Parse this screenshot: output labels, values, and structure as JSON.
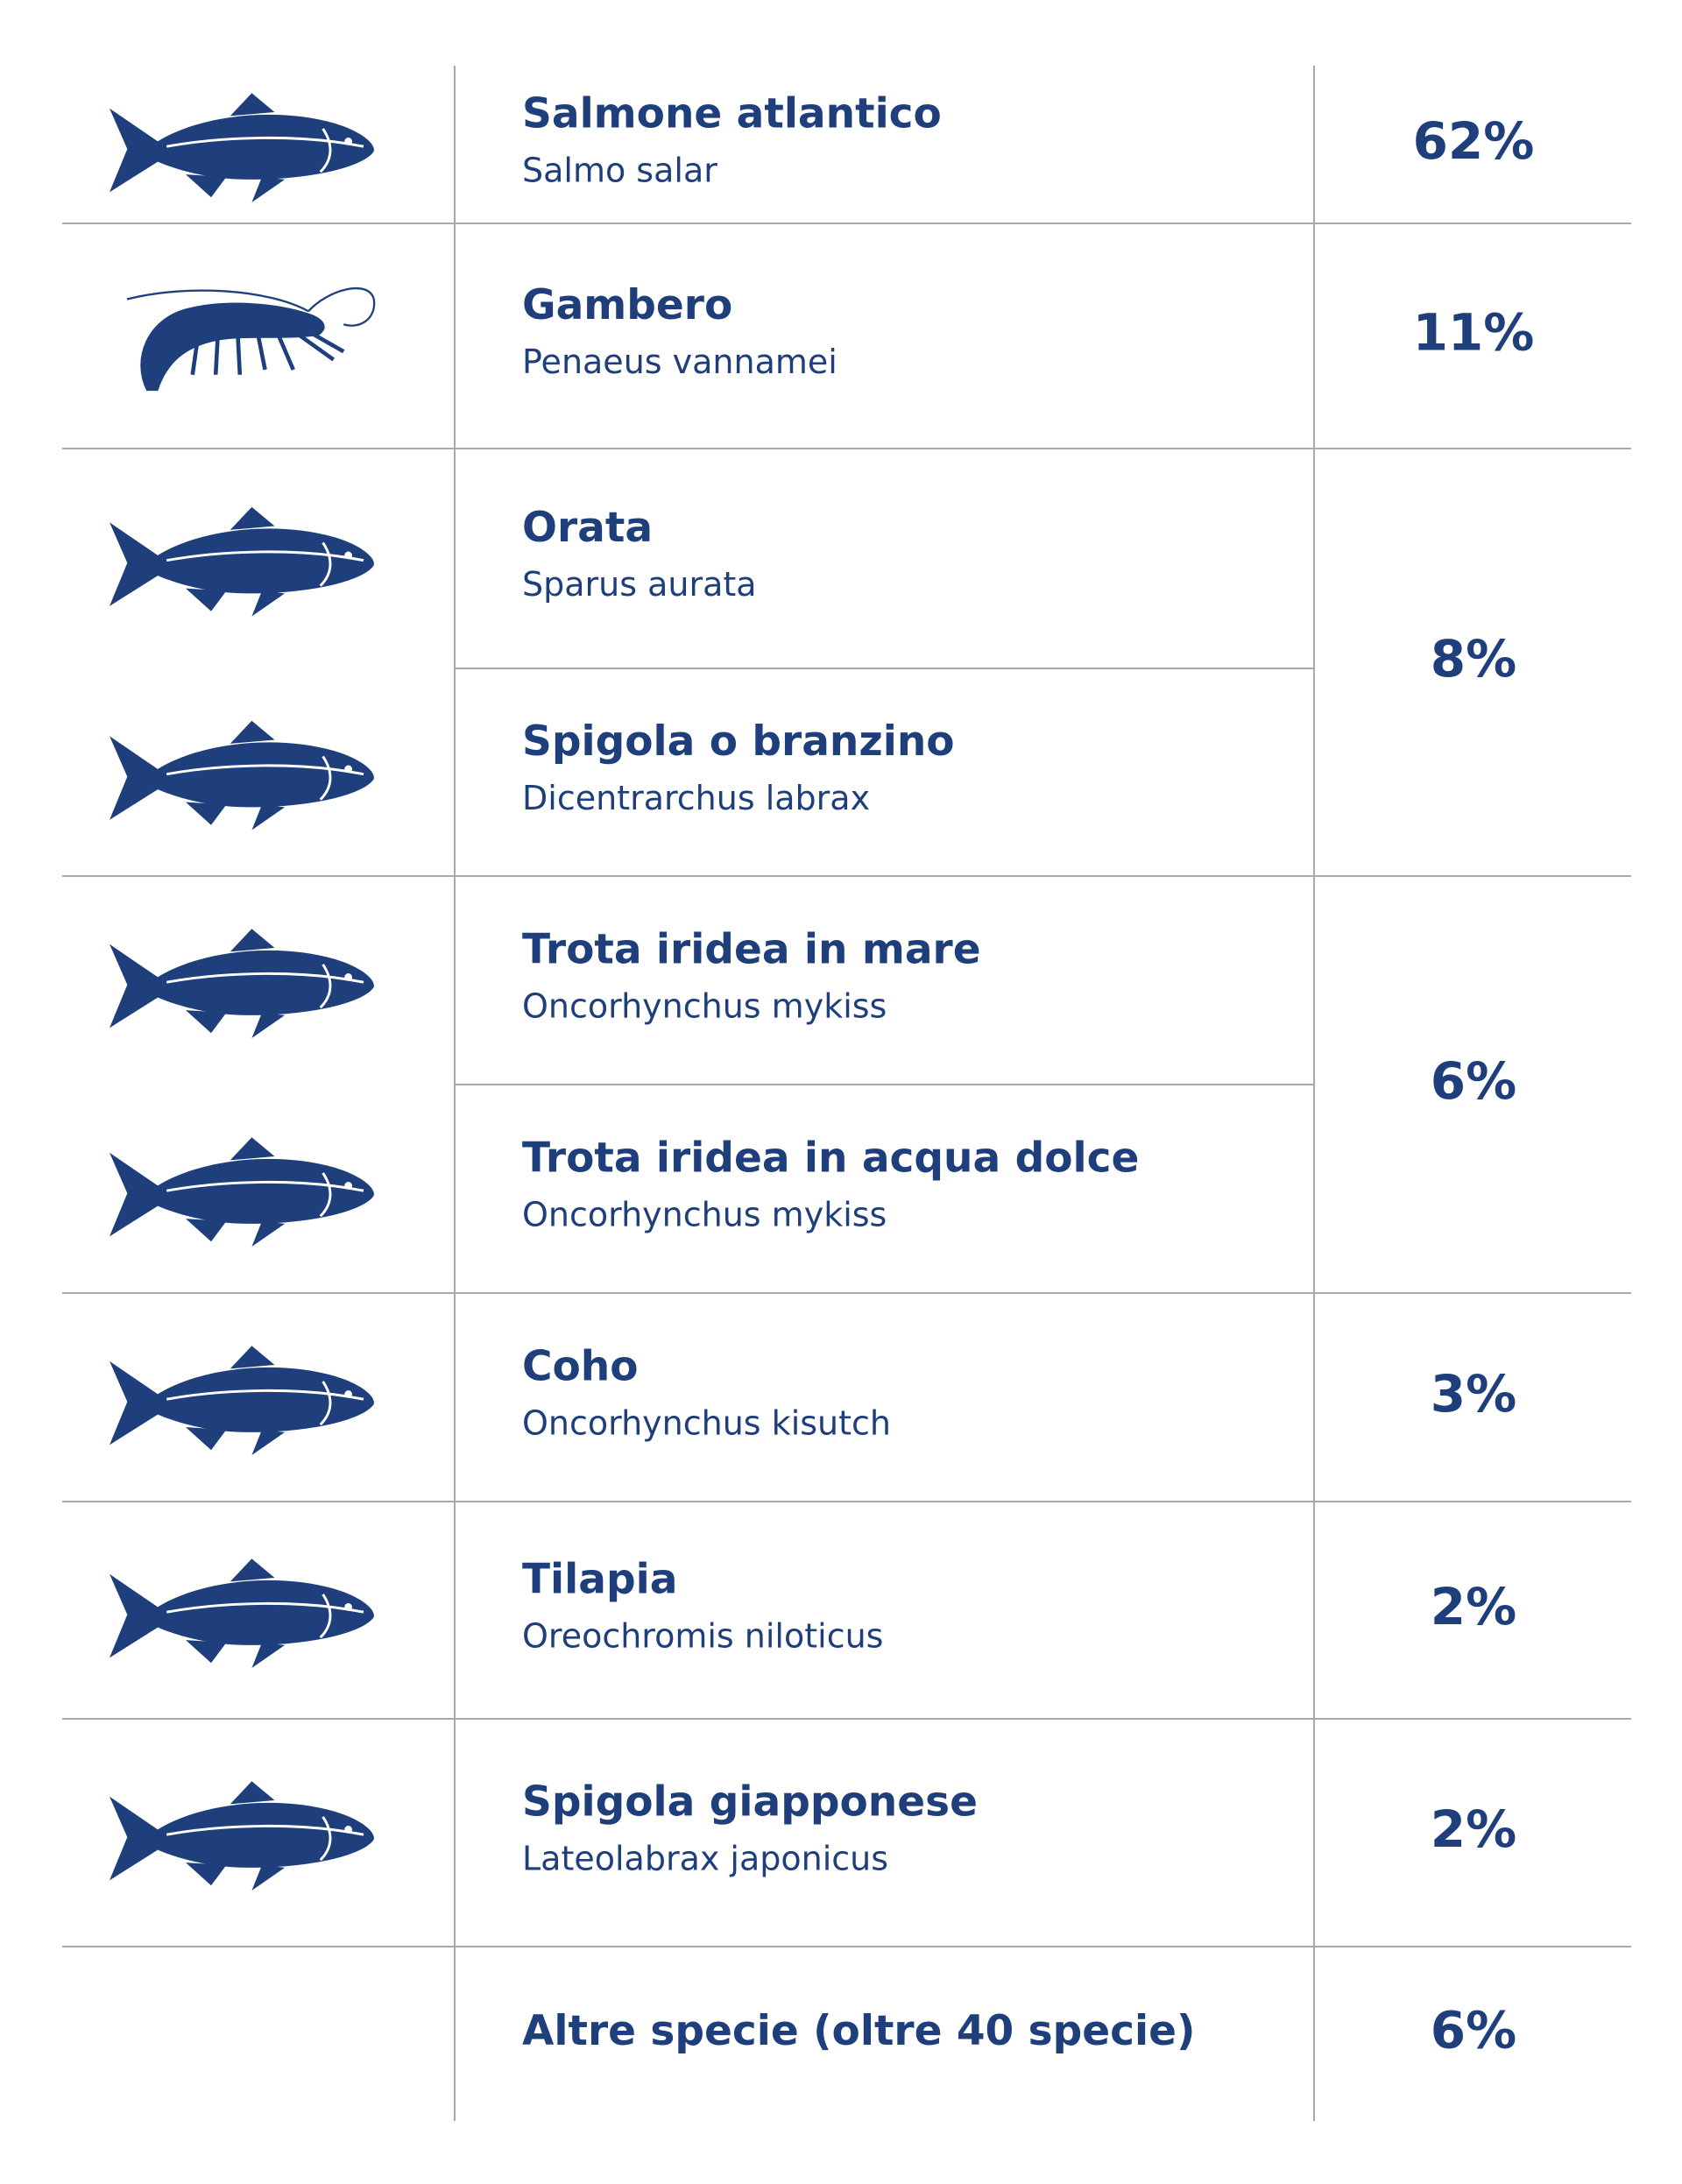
{
  "groups": [
    {
      "share": "62%",
      "species": [
        {
          "name": "Salmone atlantico",
          "latin": "Salmo salar"
        }
      ]
    },
    {
      "share": "11%",
      "species": [
        {
          "name": "Gambero",
          "latin": "Penaeus vannamei"
        }
      ]
    },
    {
      "share": "8%",
      "species": [
        {
          "name": "Orata",
          "latin": "Sparus aurata"
        },
        {
          "name": "Spigola o branzino",
          "latin": "Dicentrarchus labrax"
        }
      ]
    },
    {
      "share": "6%",
      "species": [
        {
          "name": "Trota iridea in mare",
          "latin": "Oncorhynchus mykiss"
        },
        {
          "name": "Trota iridea in acqua dolce",
          "latin": "Oncorhynchus mykiss"
        }
      ]
    },
    {
      "share": "3%",
      "species": [
        {
          "name": "Coho",
          "latin": "Oncorhynchus kisutch"
        }
      ]
    },
    {
      "share": "2%",
      "species": [
        {
          "name": "Tilapia",
          "latin": "Oreochromis niloticus"
        }
      ]
    },
    {
      "share": "2%",
      "species": [
        {
          "name": "Spigola giapponese",
          "latin": "Lateolabrax japonicus"
        }
      ]
    },
    {
      "share": "6%",
      "species": [
        {
          "name": "Altre specie (oltre 40 specie)"
        }
      ]
    }
  ]
}
